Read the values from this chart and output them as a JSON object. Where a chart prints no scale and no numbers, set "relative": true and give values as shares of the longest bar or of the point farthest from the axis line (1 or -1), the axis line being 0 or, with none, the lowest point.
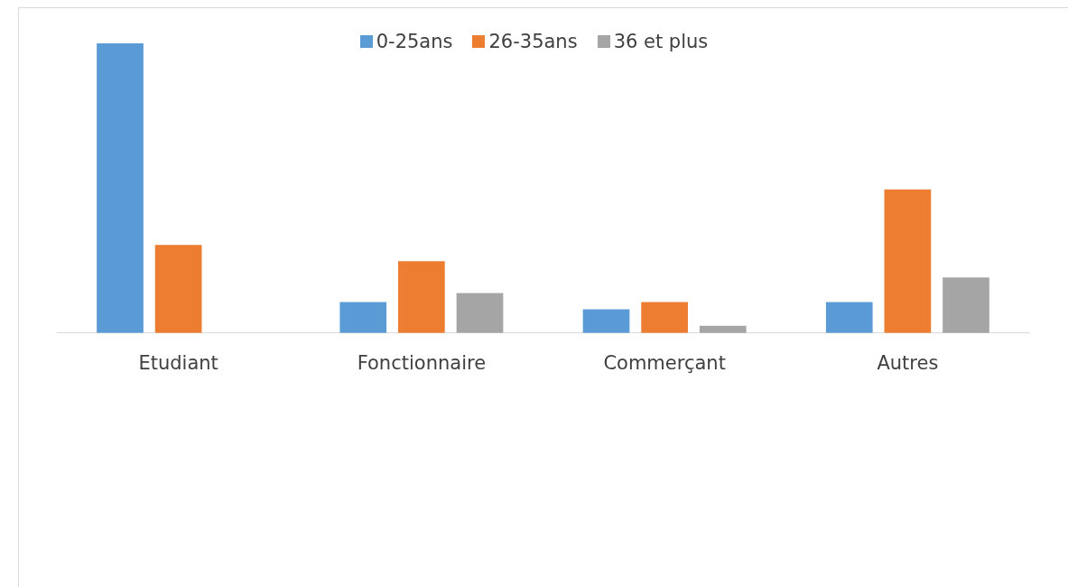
{
  "chart_data": {
    "type": "bar",
    "relative": true,
    "categories": [
      "Etudiant",
      "Fonctionnaire",
      "Commerçant",
      "Autres"
    ],
    "legend": "top",
    "grid": false,
    "series": [
      {
        "name": "0-25ans",
        "color": "#5b9bd5",
        "values": [
          1,
          0.107,
          0.082,
          0.107
        ]
      },
      {
        "name": "26-35ans",
        "color": "#ed7d31",
        "values": [
          0.304,
          0.248,
          0.107,
          0.496
        ]
      },
      {
        "name": "36 et plus",
        "color": "#a5a5a5",
        "values": [
          0,
          0.138,
          0.025,
          0.192
        ]
      }
    ]
  }
}
